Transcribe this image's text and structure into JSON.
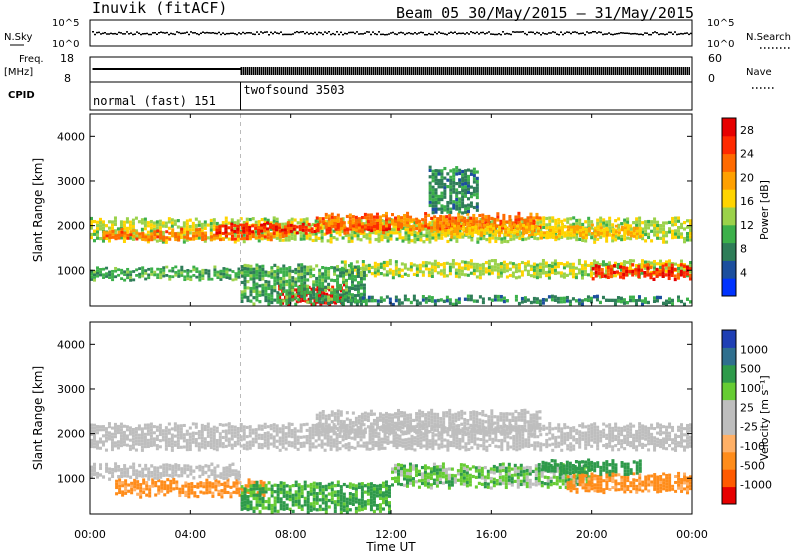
{
  "header": {
    "station": "Inuvik (fitACF)",
    "beam_dates": "Beam 05 30/May/2015 – 31/May/2015"
  },
  "top_panels": {
    "nsky_label": "N.Sky",
    "nsky_ticks": [
      "10^5",
      "10^0"
    ],
    "nsearch_label": "N.Search",
    "nsearch_ticks": [
      "10^5",
      "10^0"
    ],
    "freq_label": "Freq.",
    "freq_unit": "[MHz]",
    "freq_ticks": [
      "18",
      "8"
    ],
    "nave_label": "Nave",
    "nave_ticks": [
      "60",
      "0"
    ],
    "cpid_label": "CPID",
    "modes": [
      {
        "name": "normal (fast) 151",
        "start_hour": 0,
        "end_hour": 6
      },
      {
        "name": "twofsound 3503",
        "start_hour": 6,
        "end_hour": 24
      }
    ]
  },
  "x_axis": {
    "ticks": [
      "00:00",
      "04:00",
      "08:00",
      "12:00",
      "16:00",
      "20:00",
      "00:00"
    ],
    "label": "Time UT"
  },
  "colors": {
    "power_scale": [
      "#0033ff",
      "#1c4f9e",
      "#2e7d58",
      "#3cb04a",
      "#9bd24a",
      "#ffd400",
      "#ffa000",
      "#ff6a00",
      "#ff2a00",
      "#e60000"
    ],
    "velocity_scale": [
      "#e60000",
      "#ff5a00",
      "#ff8c1a",
      "#ffb066",
      "#bebebe",
      "#bebebe",
      "#66cc33",
      "#2e9a4a",
      "#2f6f8e",
      "#1f3fb4"
    ]
  },
  "chart_data": [
    {
      "type": "heatmap",
      "title": "Power",
      "ylabel": "Slant Range [km]",
      "xlim": [
        0,
        24
      ],
      "ylim": [
        200,
        4500
      ],
      "y_ticks": [
        1000,
        2000,
        3000,
        4000
      ],
      "colorbar": {
        "label": "Power [dB]",
        "ticks": [
          4,
          8,
          12,
          16,
          20,
          24,
          28
        ],
        "range": [
          0,
          30
        ]
      },
      "bands": [
        {
          "t0": 0,
          "t1": 24,
          "r_low": 1650,
          "r_high": 2150,
          "level": 14
        },
        {
          "t0": 0.5,
          "t1": 8,
          "r_low": 1700,
          "r_high": 1900,
          "level": 22
        },
        {
          "t0": 5,
          "t1": 12,
          "r_low": 1850,
          "r_high": 2050,
          "level": 26
        },
        {
          "t0": 9,
          "t1": 18,
          "r_low": 1900,
          "r_high": 2250,
          "level": 22
        },
        {
          "t0": 14,
          "t1": 22,
          "r_low": 1750,
          "r_high": 2000,
          "level": 18
        },
        {
          "t0": 0,
          "t1": 6,
          "r_low": 800,
          "r_high": 1050,
          "level": 10
        },
        {
          "t0": 10,
          "t1": 24,
          "r_low": 850,
          "r_high": 1200,
          "level": 14
        },
        {
          "t0": 20,
          "t1": 24,
          "r_low": 800,
          "r_high": 1100,
          "level": 26
        },
        {
          "t0": 7.5,
          "t1": 10.2,
          "r_low": 250,
          "r_high": 650,
          "level": 29
        },
        {
          "t0": 6,
          "t1": 11,
          "r_low": 250,
          "r_high": 1100,
          "level": 10
        },
        {
          "t0": 10,
          "t1": 24,
          "r_low": 250,
          "r_high": 400,
          "level": 8
        },
        {
          "t0": 13.5,
          "t1": 15.5,
          "r_low": 2300,
          "r_high": 3300,
          "level": 8
        }
      ]
    },
    {
      "type": "heatmap",
      "title": "Velocity",
      "ylabel": "Slant Range [km]",
      "xlim": [
        0,
        24
      ],
      "ylim": [
        200,
        4500
      ],
      "y_ticks": [
        1000,
        2000,
        3000,
        4000
      ],
      "colorbar": {
        "label": "Velocity [m s⁻¹]",
        "ticks": [
          -1000,
          -500,
          -100,
          -25,
          25,
          100,
          500,
          1000
        ]
      },
      "bands": [
        {
          "t0": 0,
          "t1": 24,
          "r_low": 1650,
          "r_high": 2200,
          "level": 0
        },
        {
          "t0": 9,
          "t1": 18,
          "r_low": 2000,
          "r_high": 2500,
          "level": 0
        },
        {
          "t0": 1,
          "t1": 7,
          "r_low": 600,
          "r_high": 950,
          "level": -150
        },
        {
          "t0": 6,
          "t1": 12,
          "r_low": 250,
          "r_high": 900,
          "level": 120
        },
        {
          "t0": 12,
          "t1": 20,
          "r_low": 800,
          "r_high": 1300,
          "level": 60
        },
        {
          "t0": 19,
          "t1": 24,
          "r_low": 700,
          "r_high": 1100,
          "level": -150
        },
        {
          "t0": 18,
          "t1": 22,
          "r_low": 1100,
          "r_high": 1400,
          "level": 400
        },
        {
          "t0": 0,
          "t1": 6,
          "r_low": 1000,
          "r_high": 1300,
          "level": 0
        }
      ]
    }
  ]
}
